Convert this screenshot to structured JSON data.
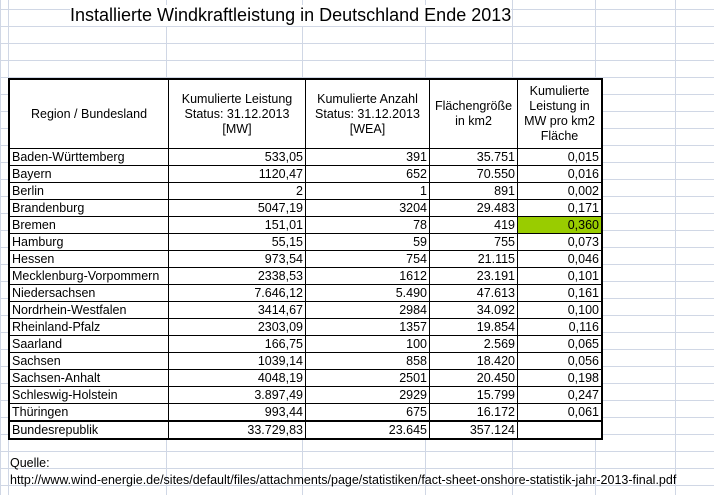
{
  "title": "Installierte Windkraftleistung in Deutschland Ende 2013",
  "headers": [
    "Region / Bundesland",
    "Kumulierte Leistung Status: 31.12.2013 [MW]",
    "Kumulierte Anzahl Status: 31.12.2013 [WEA]",
    "Flächengröße in km2",
    "Kumulierte Leistung in MW pro km2 Fläche"
  ],
  "rows": [
    [
      "Baden-Württemberg",
      "533,05",
      "391",
      "35.751",
      "0,015"
    ],
    [
      "Bayern",
      "1120,47",
      "652",
      "70.550",
      "0,016"
    ],
    [
      "Berlin",
      "2",
      "1",
      "891",
      "0,002"
    ],
    [
      "Brandenburg",
      "5047,19",
      "3204",
      "29.483",
      "0,171"
    ],
    [
      "Bremen",
      "151,01",
      "78",
      "419",
      "0,360"
    ],
    [
      "Hamburg",
      "55,15",
      "59",
      "755",
      "0,073"
    ],
    [
      "Hessen",
      "973,54",
      "754",
      "21.115",
      "0,046"
    ],
    [
      "Mecklenburg-Vorpommern",
      "2338,53",
      "1612",
      "23.191",
      "0,101"
    ],
    [
      "Niedersachsen",
      "7.646,12",
      "5.490",
      "47.613",
      "0,161"
    ],
    [
      "Nordrhein-Westfalen",
      "3414,67",
      "2984",
      "34.092",
      "0,100"
    ],
    [
      "Rheinland-Pfalz",
      "2303,09",
      "1357",
      "19.854",
      "0,116"
    ],
    [
      "Saarland",
      "166,75",
      "100",
      "2.569",
      "0,065"
    ],
    [
      "Sachsen",
      "1039,14",
      "858",
      "18.420",
      "0,056"
    ],
    [
      "Sachsen-Anhalt",
      "4048,19",
      "2501",
      "20.450",
      "0,198"
    ],
    [
      "Schleswig-Holstein",
      "3.897,49",
      "2929",
      "15.799",
      "0,247"
    ],
    [
      "Thüringen",
      "993,44",
      "675",
      "16.172",
      "0,061"
    ]
  ],
  "total": [
    "Bundesrepublik",
    "33.729,83",
    "23.645",
    "357.124",
    ""
  ],
  "highlight_color": "#99cc00",
  "source_label": "Quelle:",
  "source_url": "http://www.wind-energie.de/sites/default/files/attachments/page/statistiken/fact-sheet-onshore-statistik-jahr-2013-final.pdf"
}
